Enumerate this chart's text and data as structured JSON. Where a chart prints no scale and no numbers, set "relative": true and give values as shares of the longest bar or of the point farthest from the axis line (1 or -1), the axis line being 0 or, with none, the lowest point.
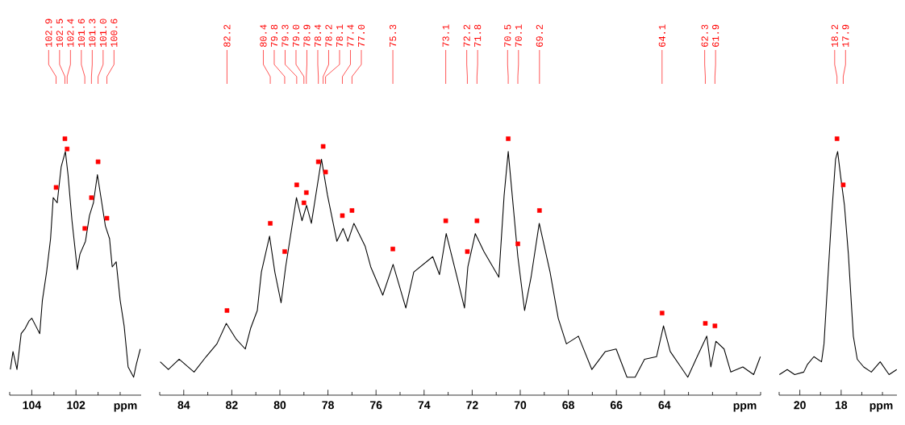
{
  "chart_data": [
    {
      "type": "line",
      "relative": true,
      "xlabel": "ppm",
      "xlim": [
        105.0,
        99.05
      ],
      "xticks": [
        104,
        102
      ],
      "series": [
        {
          "color": "#000000",
          "x": [
            104.97,
            104.85,
            104.67,
            104.48,
            104.3,
            104.12,
            104.0,
            103.82,
            103.64,
            103.52,
            103.33,
            103.15,
            103.03,
            102.85,
            102.67,
            102.48,
            102.36,
            102.18,
            101.94,
            101.82,
            101.57,
            101.39,
            101.21,
            101.03,
            100.85,
            100.67,
            100.48,
            100.36,
            100.18,
            100.0,
            99.82,
            99.64,
            99.39,
            99.27,
            99.09
          ],
          "values": [
            0.1,
            0.17,
            0.1,
            0.24,
            0.26,
            0.29,
            0.3,
            0.27,
            0.24,
            0.37,
            0.48,
            0.61,
            0.77,
            0.75,
            0.89,
            0.95,
            0.86,
            0.68,
            0.49,
            0.55,
            0.6,
            0.7,
            0.75,
            0.86,
            0.76,
            0.66,
            0.61,
            0.5,
            0.52,
            0.37,
            0.27,
            0.11,
            0.07,
            0.12,
            0.18
          ]
        },
        {
          "type": "scatter",
          "marker": "square",
          "color": "#ff0000",
          "x": [
            102.9,
            102.5,
            102.4,
            101.6,
            101.3,
            101.0,
            100.6
          ],
          "values": [
            0.81,
            1.0,
            0.96,
            0.65,
            0.77,
            0.91,
            0.69
          ]
        }
      ],
      "annotations": [
        {
          "text": "102.9",
          "x": 102.9
        },
        {
          "text": "102.5",
          "x": 102.5
        },
        {
          "text": "102.4",
          "x": 102.4
        },
        {
          "text": "101.6",
          "x": 101.6
        },
        {
          "text": "101.3",
          "x": 101.3
        },
        {
          "text": "101.0",
          "x": 101.0
        },
        {
          "text": "100.6",
          "x": 100.6
        }
      ]
    },
    {
      "type": "line",
      "relative": true,
      "xlabel": "ppm",
      "xlim": [
        85.0,
        60.0
      ],
      "xticks": [
        84,
        82,
        80,
        78,
        76,
        74,
        72,
        70,
        68,
        66,
        64
      ],
      "series": [
        {
          "color": "#000000",
          "x": [
            84.98,
            84.64,
            84.19,
            83.57,
            83.07,
            82.62,
            82.23,
            81.83,
            81.44,
            81.22,
            80.94,
            80.77,
            80.43,
            80.21,
            79.95,
            79.76,
            79.31,
            79.08,
            78.89,
            78.69,
            78.27,
            78.02,
            77.63,
            77.37,
            77.17,
            76.92,
            76.45,
            76.22,
            75.72,
            75.29,
            74.76,
            74.43,
            73.64,
            73.36,
            73.08,
            72.63,
            72.32,
            72.18,
            71.87,
            71.51,
            70.89,
            70.67,
            70.5,
            70.1,
            69.82,
            69.55,
            69.21,
            68.76,
            68.42,
            68.08,
            67.58,
            67.02,
            66.46,
            66.01,
            65.56,
            65.22,
            64.83,
            64.33,
            64.04,
            63.76,
            63.32,
            63.03,
            62.64,
            62.24,
            62.07,
            61.86,
            61.52,
            61.24,
            60.74,
            60.29,
            60.01
          ],
          "values": [
            0.13,
            0.1,
            0.14,
            0.09,
            0.15,
            0.2,
            0.28,
            0.22,
            0.18,
            0.26,
            0.33,
            0.48,
            0.62,
            0.48,
            0.36,
            0.5,
            0.77,
            0.68,
            0.74,
            0.67,
            0.92,
            0.78,
            0.6,
            0.65,
            0.6,
            0.67,
            0.58,
            0.5,
            0.39,
            0.51,
            0.34,
            0.48,
            0.54,
            0.47,
            0.63,
            0.46,
            0.34,
            0.5,
            0.63,
            0.56,
            0.46,
            0.78,
            0.95,
            0.54,
            0.33,
            0.46,
            0.67,
            0.48,
            0.3,
            0.2,
            0.23,
            0.1,
            0.17,
            0.18,
            0.07,
            0.07,
            0.14,
            0.15,
            0.27,
            0.17,
            0.11,
            0.07,
            0.15,
            0.23,
            0.11,
            0.21,
            0.18,
            0.09,
            0.11,
            0.08,
            0.15
          ]
        },
        {
          "type": "scatter",
          "marker": "square",
          "color": "#ff0000",
          "x": [
            82.2,
            80.4,
            79.8,
            79.3,
            79.0,
            78.9,
            78.4,
            78.2,
            78.1,
            77.4,
            77.0,
            75.3,
            73.1,
            72.2,
            71.8,
            70.5,
            70.1,
            69.2,
            64.1,
            62.3,
            61.9
          ],
          "values": [
            0.33,
            0.67,
            0.56,
            0.82,
            0.75,
            0.79,
            0.91,
            0.97,
            0.87,
            0.7,
            0.72,
            0.57,
            0.68,
            0.56,
            0.68,
            1.0,
            0.59,
            0.72,
            0.32,
            0.28,
            0.27
          ]
        }
      ],
      "annotations": [
        {
          "text": "82.2",
          "x": 82.2
        },
        {
          "text": "80.4",
          "x": 80.4
        },
        {
          "text": "79.8",
          "x": 79.8
        },
        {
          "text": "79.3",
          "x": 79.3
        },
        {
          "text": "79.0",
          "x": 79.0
        },
        {
          "text": "78.9",
          "x": 78.9
        },
        {
          "text": "78.4",
          "x": 78.4
        },
        {
          "text": "78.2",
          "x": 78.2
        },
        {
          "text": "78.1",
          "x": 78.1
        },
        {
          "text": "77.4",
          "x": 77.4
        },
        {
          "text": "77.0",
          "x": 77.0
        },
        {
          "text": "75.3",
          "x": 75.3
        },
        {
          "text": "73.1",
          "x": 73.1
        },
        {
          "text": "72.2",
          "x": 72.2
        },
        {
          "text": "71.8",
          "x": 71.8
        },
        {
          "text": "70.5",
          "x": 70.5
        },
        {
          "text": "70.1",
          "x": 70.1
        },
        {
          "text": "69.2",
          "x": 69.2
        },
        {
          "text": "64.1",
          "x": 64.1
        },
        {
          "text": "62.3",
          "x": 62.3
        },
        {
          "text": "61.9",
          "x": 61.9
        }
      ]
    },
    {
      "type": "line",
      "relative": true,
      "xlabel": "ppm",
      "xlim": [
        21.0,
        15.3
      ],
      "xticks": [
        20,
        18
      ],
      "series": [
        {
          "color": "#000000",
          "x": [
            20.99,
            20.61,
            20.25,
            19.81,
            19.63,
            19.32,
            18.95,
            18.83,
            18.64,
            18.46,
            18.27,
            18.17,
            18.02,
            17.84,
            17.65,
            17.41,
            17.22,
            16.91,
            16.54,
            16.11,
            15.68,
            15.31
          ],
          "values": [
            0.08,
            0.1,
            0.08,
            0.09,
            0.12,
            0.15,
            0.13,
            0.2,
            0.46,
            0.7,
            0.92,
            0.95,
            0.85,
            0.74,
            0.55,
            0.23,
            0.14,
            0.11,
            0.09,
            0.13,
            0.08,
            0.1
          ]
        },
        {
          "type": "scatter",
          "marker": "square",
          "color": "#ff0000",
          "x": [
            18.2,
            17.9
          ],
          "values": [
            1.0,
            0.82
          ]
        }
      ],
      "annotations": [
        {
          "text": "18.2",
          "x": 18.2
        },
        {
          "text": "17.9",
          "x": 17.9
        }
      ]
    }
  ]
}
